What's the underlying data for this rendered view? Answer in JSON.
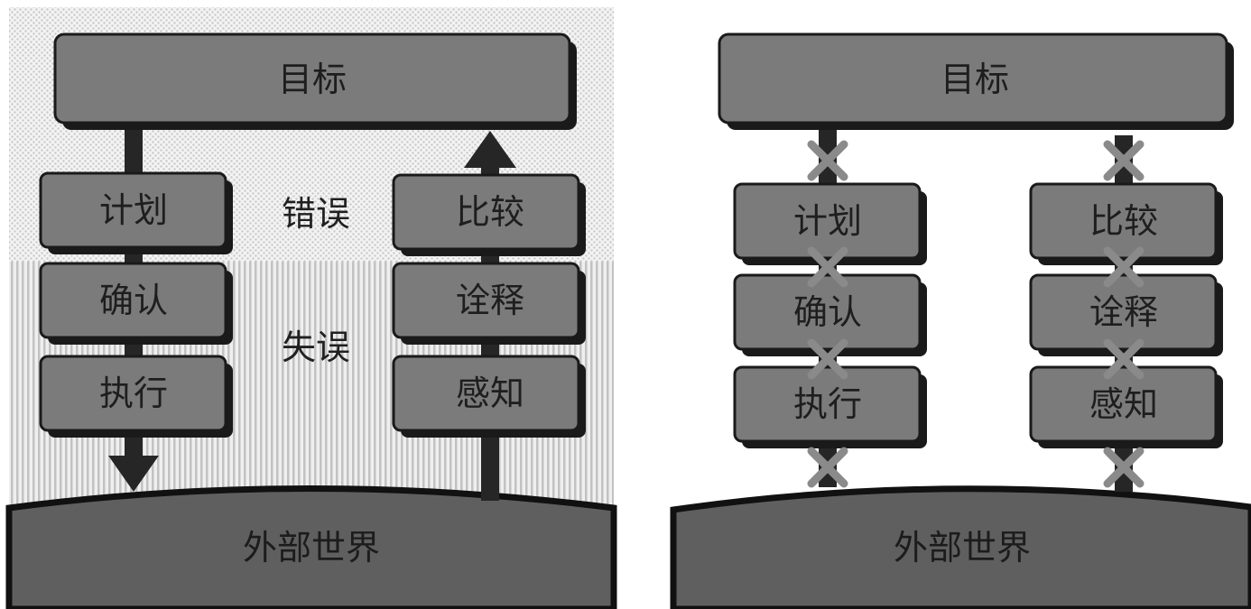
{
  "left_panel": {
    "goal": "目标",
    "execution": [
      "计划",
      "确认",
      "执行"
    ],
    "evaluation": [
      "比较",
      "诠释",
      "感知"
    ],
    "mistake_label": "错误",
    "slip_label": "失误",
    "world": "外部世界"
  },
  "right_panel": {
    "goal": "目标",
    "execution": [
      "计划",
      "确认",
      "执行"
    ],
    "evaluation": [
      "比较",
      "诠释",
      "感知"
    ],
    "world": "外部世界"
  },
  "colors": {
    "box_fill": "#7b7b7b",
    "box_shadow": "#1a1a1a",
    "world_fill": "#5f5f5f",
    "arrow": "#262626",
    "cross": "#8a8a8a"
  }
}
